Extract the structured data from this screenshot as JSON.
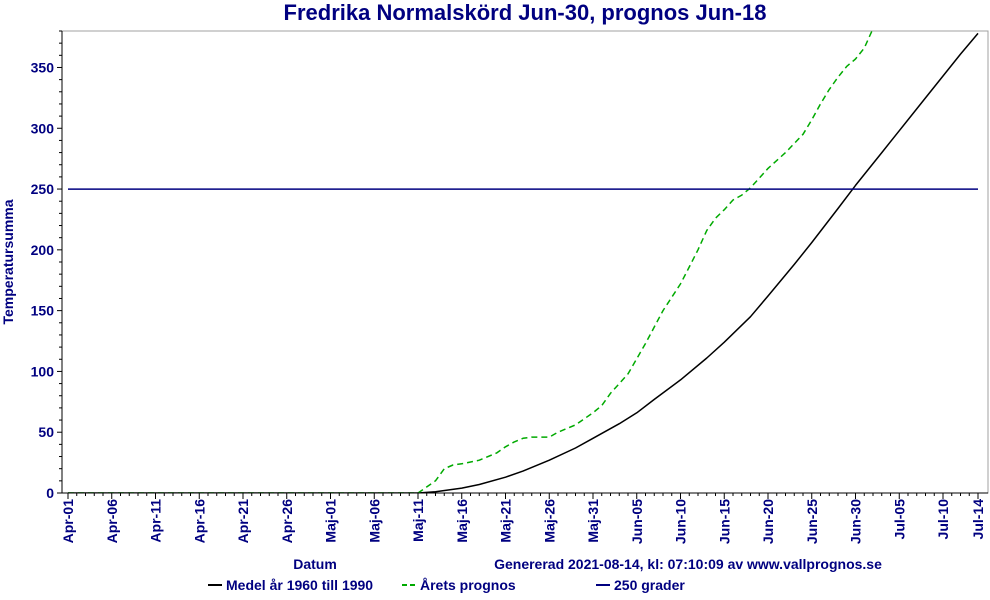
{
  "chart_data": {
    "type": "line",
    "title": "Fredrika Normalskörd Jun-30, prognos Jun-18",
    "xlabel": "Datum",
    "ylabel": "Temperatursumma",
    "footnote": "Genererad 2021-08-14, kl: 07:10:09 av www.vallprognos.se",
    "ylim": [
      0,
      380
    ],
    "yticks": [
      0,
      50,
      100,
      150,
      200,
      250,
      300,
      350
    ],
    "x_range_days": [
      0,
      104
    ],
    "x_ticks": [
      {
        "day": 0,
        "label": "Apr-01"
      },
      {
        "day": 5,
        "label": "Apr-06"
      },
      {
        "day": 10,
        "label": "Apr-11"
      },
      {
        "day": 15,
        "label": "Apr-16"
      },
      {
        "day": 20,
        "label": "Apr-21"
      },
      {
        "day": 25,
        "label": "Apr-26"
      },
      {
        "day": 30,
        "label": "Maj-01"
      },
      {
        "day": 35,
        "label": "Maj-06"
      },
      {
        "day": 40,
        "label": "Maj-11"
      },
      {
        "day": 45,
        "label": "Maj-16"
      },
      {
        "day": 50,
        "label": "Maj-21"
      },
      {
        "day": 55,
        "label": "Maj-26"
      },
      {
        "day": 60,
        "label": "Maj-31"
      },
      {
        "day": 65,
        "label": "Jun-05"
      },
      {
        "day": 70,
        "label": "Jun-10"
      },
      {
        "day": 75,
        "label": "Jun-15"
      },
      {
        "day": 80,
        "label": "Jun-20"
      },
      {
        "day": 85,
        "label": "Jun-25"
      },
      {
        "day": 90,
        "label": "Jun-30"
      },
      {
        "day": 95,
        "label": "Jul-05"
      },
      {
        "day": 100,
        "label": "Jul-10"
      },
      {
        "day": 104,
        "label": "Jul-14"
      }
    ],
    "grid": false,
    "legend_position": "bottom",
    "series": [
      {
        "name": "Medel år 1960 till 1990",
        "color": "#000000",
        "style": "solid",
        "points": [
          [
            0,
            0
          ],
          [
            40,
            0
          ],
          [
            42,
            1
          ],
          [
            45,
            4
          ],
          [
            47,
            7
          ],
          [
            50,
            13
          ],
          [
            52,
            18
          ],
          [
            55,
            27
          ],
          [
            58,
            37
          ],
          [
            60,
            45
          ],
          [
            63,
            57
          ],
          [
            65,
            66
          ],
          [
            67,
            77
          ],
          [
            70,
            93
          ],
          [
            73,
            111
          ],
          [
            75,
            124
          ],
          [
            78,
            145
          ],
          [
            80,
            162
          ],
          [
            83,
            188
          ],
          [
            85,
            206
          ],
          [
            88,
            234
          ],
          [
            90,
            253
          ],
          [
            93,
            280
          ],
          [
            95,
            298
          ],
          [
            98,
            325
          ],
          [
            100,
            343
          ],
          [
            102,
            361
          ],
          [
            104,
            378
          ]
        ]
      },
      {
        "name": "Årets prognos",
        "color": "#00aa00",
        "style": "dashed",
        "points": [
          [
            0,
            0
          ],
          [
            40,
            0
          ],
          [
            41,
            5
          ],
          [
            42,
            10
          ],
          [
            43,
            20
          ],
          [
            44,
            23
          ],
          [
            45,
            24
          ],
          [
            47,
            27
          ],
          [
            49,
            33
          ],
          [
            50,
            38
          ],
          [
            51,
            42
          ],
          [
            52,
            45
          ],
          [
            53,
            46
          ],
          [
            55,
            46
          ],
          [
            56,
            50
          ],
          [
            58,
            56
          ],
          [
            59,
            61
          ],
          [
            60,
            66
          ],
          [
            61,
            72
          ],
          [
            62,
            82
          ],
          [
            64,
            98
          ],
          [
            66,
            123
          ],
          [
            68,
            150
          ],
          [
            70,
            172
          ],
          [
            71,
            186
          ],
          [
            72,
            200
          ],
          [
            73,
            216
          ],
          [
            74,
            226
          ],
          [
            75,
            233
          ],
          [
            76,
            241
          ],
          [
            77,
            245
          ],
          [
            78,
            251
          ],
          [
            79,
            259
          ],
          [
            80,
            267
          ],
          [
            82,
            280
          ],
          [
            84,
            295
          ],
          [
            85,
            307
          ],
          [
            86,
            320
          ],
          [
            87,
            332
          ],
          [
            88,
            342
          ],
          [
            89,
            351
          ],
          [
            90,
            357
          ],
          [
            91,
            366
          ],
          [
            92,
            382
          ]
        ]
      },
      {
        "name": "250 grader",
        "color": "#000080",
        "style": "solid",
        "points": [
          [
            0,
            250
          ],
          [
            104,
            250
          ]
        ]
      }
    ]
  }
}
